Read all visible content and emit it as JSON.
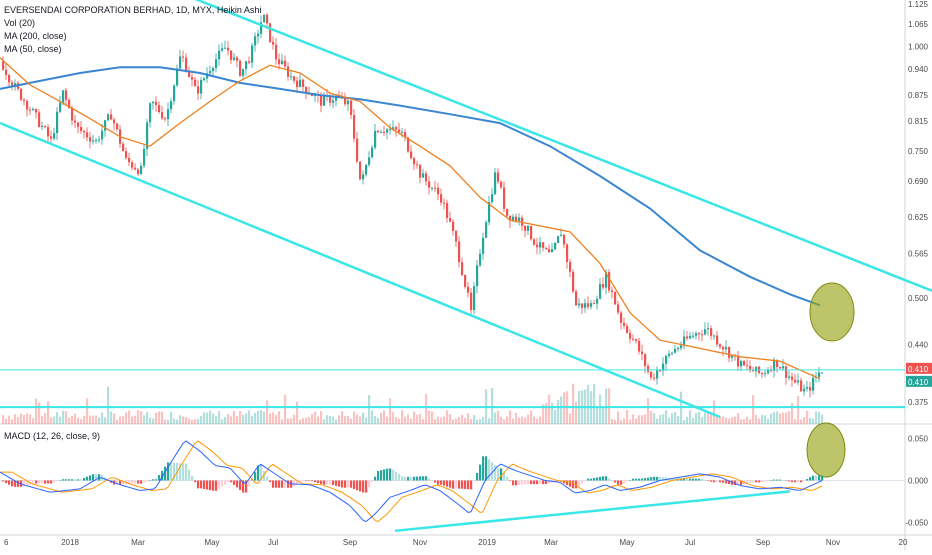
{
  "legend": {
    "title": "EVERSENDAI CORPORATION BERHAD, 1D, MYX, Heikin Ashi",
    "vol": "Vol (20)",
    "ma200": "MA (200, close)",
    "ma50": "MA (50, close)",
    "macd": "MACD (12, 26, close, 9)"
  },
  "colors": {
    "up": "#26a69a",
    "down": "#ef5350",
    "ma200": "#3a86d0",
    "ma50": "#f07f1c",
    "trend": "#3ae6e6",
    "hline": "#3ae6e6",
    "macd_line": "#2962ff",
    "signal_line": "#ff9800",
    "hist_up_strong": "#26a69a",
    "hist_up_weak": "#b2dfdb",
    "hist_down_strong": "#ef5350",
    "hist_down_weak": "#ffcdd2",
    "ellipse_fill": "#9aa51a",
    "ellipse_stroke": "#7d8a10"
  },
  "chart_data": {
    "type": "candlestick",
    "title": "EVERSENDAI CORPORATION BERHAD, 1D, MYX, Heikin Ashi",
    "x_ticks": [
      "6",
      "2018",
      "Mar",
      "May",
      "Jul",
      "Sep",
      "Nov",
      "2019",
      "Mar",
      "May",
      "Jul",
      "Sep",
      "Nov",
      "20"
    ],
    "price_scale": "log",
    "price_ticks": [
      "1.125",
      "1.065",
      "1.000",
      "0.940",
      "0.875",
      "0.815",
      "0.750",
      "0.690",
      "0.625",
      "0.565",
      "0.500",
      "0.440",
      "0.375"
    ],
    "macd_ticks": [
      "0.050",
      "0.000",
      "-0.050"
    ],
    "price_labels": [
      "0.410",
      "0.410"
    ],
    "price_keypoints": [
      [
        0,
        0.96
      ],
      [
        12,
        0.9
      ],
      [
        30,
        0.84
      ],
      [
        50,
        0.77
      ],
      [
        62,
        0.88
      ],
      [
        75,
        0.8
      ],
      [
        95,
        0.77
      ],
      [
        110,
        0.83
      ],
      [
        125,
        0.73
      ],
      [
        140,
        0.71
      ],
      [
        150,
        0.86
      ],
      [
        165,
        0.82
      ],
      [
        180,
        0.98
      ],
      [
        195,
        0.88
      ],
      [
        210,
        0.95
      ],
      [
        225,
        1.0
      ],
      [
        240,
        0.93
      ],
      [
        250,
        0.98
      ],
      [
        262,
        1.09
      ],
      [
        275,
        0.97
      ],
      [
        290,
        0.92
      ],
      [
        305,
        0.89
      ],
      [
        320,
        0.86
      ],
      [
        335,
        0.87
      ],
      [
        348,
        0.85
      ],
      [
        360,
        0.68
      ],
      [
        375,
        0.8
      ],
      [
        400,
        0.79
      ],
      [
        420,
        0.7
      ],
      [
        440,
        0.66
      ],
      [
        455,
        0.58
      ],
      [
        470,
        0.48
      ],
      [
        480,
        0.58
      ],
      [
        495,
        0.71
      ],
      [
        505,
        0.63
      ],
      [
        520,
        0.62
      ],
      [
        535,
        0.58
      ],
      [
        550,
        0.56
      ],
      [
        560,
        0.6
      ],
      [
        575,
        0.49
      ],
      [
        590,
        0.49
      ],
      [
        605,
        0.53
      ],
      [
        620,
        0.47
      ],
      [
        635,
        0.44
      ],
      [
        650,
        0.4
      ],
      [
        670,
        0.43
      ],
      [
        690,
        0.45
      ],
      [
        705,
        0.46
      ],
      [
        720,
        0.44
      ],
      [
        740,
        0.415
      ],
      [
        760,
        0.405
      ],
      [
        775,
        0.42
      ],
      [
        790,
        0.4
      ],
      [
        805,
        0.385
      ],
      [
        820,
        0.41
      ]
    ],
    "ma200": [
      [
        0,
        0.89
      ],
      [
        40,
        0.91
      ],
      [
        80,
        0.93
      ],
      [
        120,
        0.945
      ],
      [
        160,
        0.945
      ],
      [
        200,
        0.93
      ],
      [
        240,
        0.905
      ],
      [
        280,
        0.89
      ],
      [
        320,
        0.875
      ],
      [
        360,
        0.865
      ],
      [
        400,
        0.85
      ],
      [
        450,
        0.83
      ],
      [
        500,
        0.81
      ],
      [
        550,
        0.76
      ],
      [
        600,
        0.7
      ],
      [
        650,
        0.64
      ],
      [
        700,
        0.57
      ],
      [
        750,
        0.53
      ],
      [
        790,
        0.505
      ],
      [
        820,
        0.49
      ]
    ],
    "ma50": [
      [
        0,
        0.97
      ],
      [
        30,
        0.9
      ],
      [
        60,
        0.86
      ],
      [
        90,
        0.82
      ],
      [
        120,
        0.78
      ],
      [
        150,
        0.76
      ],
      [
        180,
        0.81
      ],
      [
        210,
        0.86
      ],
      [
        240,
        0.91
      ],
      [
        270,
        0.95
      ],
      [
        300,
        0.93
      ],
      [
        330,
        0.88
      ],
      [
        360,
        0.86
      ],
      [
        390,
        0.8
      ],
      [
        420,
        0.76
      ],
      [
        450,
        0.72
      ],
      [
        480,
        0.66
      ],
      [
        510,
        0.62
      ],
      [
        540,
        0.61
      ],
      [
        570,
        0.6
      ],
      [
        600,
        0.55
      ],
      [
        630,
        0.48
      ],
      [
        660,
        0.445
      ],
      [
        700,
        0.435
      ],
      [
        740,
        0.425
      ],
      [
        780,
        0.42
      ],
      [
        820,
        0.4
      ]
    ],
    "upper_trendline": [
      [
        180,
        1.16
      ],
      [
        932,
        0.51
      ]
    ],
    "lower_trendline": [
      [
        0,
        0.81
      ],
      [
        720,
        0.36
      ]
    ],
    "horizontal_lines": [
      0.41,
      0.37
    ],
    "macd_trendline": [
      [
        395,
        -0.06
      ],
      [
        790,
        -0.013
      ]
    ],
    "macd_keypoints": [
      [
        0,
        0.01
      ],
      [
        20,
        -0.004
      ],
      [
        50,
        -0.014
      ],
      [
        80,
        -0.01
      ],
      [
        100,
        0.004
      ],
      [
        120,
        -0.005
      ],
      [
        140,
        -0.012
      ],
      [
        155,
        -0.01
      ],
      [
        170,
        0.02
      ],
      [
        185,
        0.048
      ],
      [
        200,
        0.035
      ],
      [
        215,
        0.018
      ],
      [
        230,
        0.015
      ],
      [
        245,
        -0.005
      ],
      [
        260,
        0.02
      ],
      [
        275,
        0.008
      ],
      [
        290,
        -0.004
      ],
      [
        310,
        -0.005
      ],
      [
        330,
        -0.014
      ],
      [
        350,
        -0.03
      ],
      [
        365,
        -0.05
      ],
      [
        375,
        -0.04
      ],
      [
        390,
        -0.02
      ],
      [
        410,
        -0.012
      ],
      [
        425,
        -0.005
      ],
      [
        440,
        -0.012
      ],
      [
        460,
        -0.03
      ],
      [
        470,
        -0.04
      ],
      [
        485,
        0.0
      ],
      [
        500,
        0.02
      ],
      [
        515,
        0.012
      ],
      [
        530,
        0.006
      ],
      [
        545,
        0.0
      ],
      [
        560,
        -0.002
      ],
      [
        575,
        -0.015
      ],
      [
        590,
        -0.012
      ],
      [
        605,
        -0.005
      ],
      [
        620,
        -0.012
      ],
      [
        640,
        -0.008
      ],
      [
        660,
        0.0
      ],
      [
        680,
        0.004
      ],
      [
        700,
        0.008
      ],
      [
        720,
        0.004
      ],
      [
        740,
        -0.006
      ],
      [
        760,
        -0.01
      ],
      [
        780,
        -0.008
      ],
      [
        800,
        -0.012
      ],
      [
        815,
        -0.004
      ],
      [
        822,
        0.0
      ]
    ]
  }
}
